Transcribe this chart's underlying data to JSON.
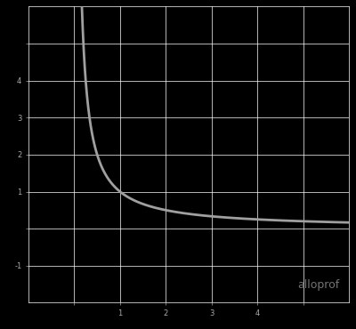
{
  "background_color": "#000000",
  "grid_color": "#ffffff",
  "curve_color": "#a0a0a0",
  "curve_linewidth": 2.0,
  "watermark_text": "alloprof",
  "watermark_color": "#808080",
  "watermark_fontsize": 9,
  "xlim": [
    -1,
    6
  ],
  "ylim": [
    -2,
    6
  ],
  "xtick_positions": [
    0,
    1,
    2,
    3,
    4,
    5
  ],
  "ytick_positions": [
    -1,
    0,
    1,
    2,
    3,
    4,
    5
  ],
  "xtick_labels": [
    "",
    "1",
    "2",
    "3",
    "4",
    ""
  ],
  "ytick_labels": [
    "-1",
    "",
    "1",
    "2",
    "3",
    "4",
    ""
  ],
  "tick_label_color": "#aaaaaa",
  "tick_label_fontsize": 6,
  "figsize": [
    4.0,
    3.7
  ],
  "dpi": 100
}
